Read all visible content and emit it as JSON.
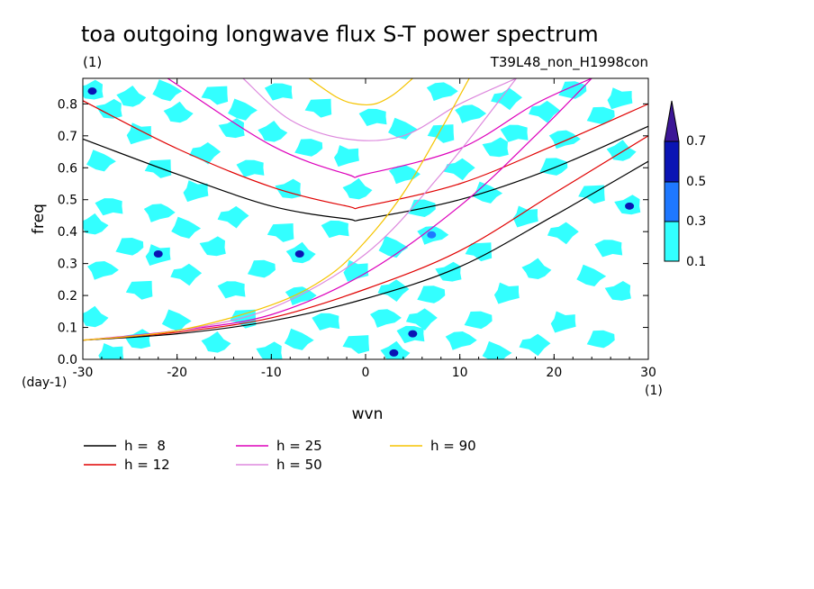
{
  "chart_data": {
    "type": "heatmap",
    "title": "toa outgoing longwave flux S-T power spectrum",
    "subtitle_left": "(1)",
    "subtitle_right": "T39L48_non_H1998con",
    "xlabel": "wvn",
    "ylabel": "freq",
    "x_unit": "(1)",
    "y_unit": "(day-1)",
    "xlim": [
      -30,
      30
    ],
    "ylim": [
      0,
      0.88
    ],
    "xticks": [
      "-30",
      "-20",
      "-10",
      "0",
      "10",
      "20",
      "30"
    ],
    "yticks": [
      "0.0",
      "0.1",
      "0.2",
      "0.3",
      "0.4",
      "0.5",
      "0.6",
      "0.7",
      "0.8"
    ],
    "colorbar": {
      "levels": [
        "0.1",
        "0.3",
        "0.5",
        "0.7"
      ],
      "colors": [
        "#33ffff",
        "#1e78ff",
        "#0a14b4",
        "#3c1696"
      ]
    },
    "contour_patches": [
      {
        "x": -29,
        "y": 0.84,
        "v": 0.5
      },
      {
        "x": -25,
        "y": 0.82,
        "v": 0.1
      },
      {
        "x": -21,
        "y": 0.84,
        "v": 0.1
      },
      {
        "x": -16,
        "y": 0.83,
        "v": 0.1
      },
      {
        "x": -9,
        "y": 0.84,
        "v": 0.1
      },
      {
        "x": 8,
        "y": 0.84,
        "v": 0.1
      },
      {
        "x": 15,
        "y": 0.82,
        "v": 0.1
      },
      {
        "x": 22,
        "y": 0.84,
        "v": 0.1
      },
      {
        "x": 27,
        "y": 0.82,
        "v": 0.1
      },
      {
        "x": -27,
        "y": 0.78,
        "v": 0.1
      },
      {
        "x": -20,
        "y": 0.77,
        "v": 0.1
      },
      {
        "x": -13,
        "y": 0.78,
        "v": 0.1
      },
      {
        "x": -5,
        "y": 0.79,
        "v": 0.1
      },
      {
        "x": 1,
        "y": 0.76,
        "v": 0.1
      },
      {
        "x": 11,
        "y": 0.77,
        "v": 0.1
      },
      {
        "x": 19,
        "y": 0.78,
        "v": 0.1
      },
      {
        "x": 25,
        "y": 0.76,
        "v": 0.1
      },
      {
        "x": -24,
        "y": 0.71,
        "v": 0.1
      },
      {
        "x": -14,
        "y": 0.72,
        "v": 0.1
      },
      {
        "x": -10,
        "y": 0.71,
        "v": 0.1
      },
      {
        "x": 4,
        "y": 0.72,
        "v": 0.1
      },
      {
        "x": 8,
        "y": 0.71,
        "v": 0.1
      },
      {
        "x": 16,
        "y": 0.71,
        "v": 0.1
      },
      {
        "x": 21,
        "y": 0.69,
        "v": 0.1
      },
      {
        "x": -17,
        "y": 0.65,
        "v": 0.1
      },
      {
        "x": -6,
        "y": 0.66,
        "v": 0.1
      },
      {
        "x": -2,
        "y": 0.64,
        "v": 0.1
      },
      {
        "x": 14,
        "y": 0.66,
        "v": 0.1
      },
      {
        "x": 27,
        "y": 0.65,
        "v": 0.1
      },
      {
        "x": -28,
        "y": 0.62,
        "v": 0.1
      },
      {
        "x": -22,
        "y": 0.6,
        "v": 0.1
      },
      {
        "x": -12,
        "y": 0.6,
        "v": 0.1
      },
      {
        "x": 4,
        "y": 0.58,
        "v": 0.1
      },
      {
        "x": 10,
        "y": 0.6,
        "v": 0.1
      },
      {
        "x": 20,
        "y": 0.6,
        "v": 0.1
      },
      {
        "x": -18,
        "y": 0.53,
        "v": 0.1
      },
      {
        "x": -8,
        "y": 0.53,
        "v": 0.1
      },
      {
        "x": -1,
        "y": 0.53,
        "v": 0.1
      },
      {
        "x": 13,
        "y": 0.52,
        "v": 0.1
      },
      {
        "x": 24,
        "y": 0.52,
        "v": 0.1
      },
      {
        "x": -27,
        "y": 0.48,
        "v": 0.1
      },
      {
        "x": -22,
        "y": 0.46,
        "v": 0.1
      },
      {
        "x": -14,
        "y": 0.45,
        "v": 0.1
      },
      {
        "x": 6,
        "y": 0.47,
        "v": 0.1
      },
      {
        "x": 17,
        "y": 0.45,
        "v": 0.1
      },
      {
        "x": 28,
        "y": 0.48,
        "v": 0.5
      },
      {
        "x": -29,
        "y": 0.42,
        "v": 0.1
      },
      {
        "x": -19,
        "y": 0.41,
        "v": 0.1
      },
      {
        "x": -9,
        "y": 0.4,
        "v": 0.1
      },
      {
        "x": -3,
        "y": 0.41,
        "v": 0.1
      },
      {
        "x": 7,
        "y": 0.39,
        "v": 0.3
      },
      {
        "x": 21,
        "y": 0.4,
        "v": 0.1
      },
      {
        "x": -25,
        "y": 0.35,
        "v": 0.1
      },
      {
        "x": -22,
        "y": 0.33,
        "v": 0.5
      },
      {
        "x": -16,
        "y": 0.35,
        "v": 0.1
      },
      {
        "x": -7,
        "y": 0.33,
        "v": 0.5
      },
      {
        "x": 3,
        "y": 0.35,
        "v": 0.1
      },
      {
        "x": 12,
        "y": 0.34,
        "v": 0.1
      },
      {
        "x": 26,
        "y": 0.35,
        "v": 0.1
      },
      {
        "x": -28,
        "y": 0.28,
        "v": 0.1
      },
      {
        "x": -19,
        "y": 0.27,
        "v": 0.1
      },
      {
        "x": -11,
        "y": 0.28,
        "v": 0.1
      },
      {
        "x": -1,
        "y": 0.28,
        "v": 0.1
      },
      {
        "x": 9,
        "y": 0.27,
        "v": 0.1
      },
      {
        "x": 18,
        "y": 0.28,
        "v": 0.1
      },
      {
        "x": 24,
        "y": 0.26,
        "v": 0.1
      },
      {
        "x": -24,
        "y": 0.22,
        "v": 0.1
      },
      {
        "x": -14,
        "y": 0.22,
        "v": 0.1
      },
      {
        "x": -7,
        "y": 0.2,
        "v": 0.1
      },
      {
        "x": 3,
        "y": 0.22,
        "v": 0.1
      },
      {
        "x": 7,
        "y": 0.2,
        "v": 0.1
      },
      {
        "x": 15,
        "y": 0.21,
        "v": 0.1
      },
      {
        "x": 27,
        "y": 0.21,
        "v": 0.1
      },
      {
        "x": -29,
        "y": 0.13,
        "v": 0.1
      },
      {
        "x": -20,
        "y": 0.12,
        "v": 0.1
      },
      {
        "x": -13,
        "y": 0.13,
        "v": 0.1
      },
      {
        "x": -4,
        "y": 0.12,
        "v": 0.1
      },
      {
        "x": 2,
        "y": 0.13,
        "v": 0.1
      },
      {
        "x": 6,
        "y": 0.13,
        "v": 0.1
      },
      {
        "x": 12,
        "y": 0.12,
        "v": 0.1
      },
      {
        "x": 21,
        "y": 0.12,
        "v": 0.1
      },
      {
        "x": -24,
        "y": 0.06,
        "v": 0.1
      },
      {
        "x": -16,
        "y": 0.05,
        "v": 0.1
      },
      {
        "x": -7,
        "y": 0.06,
        "v": 0.1
      },
      {
        "x": -1,
        "y": 0.05,
        "v": 0.1
      },
      {
        "x": 5,
        "y": 0.08,
        "v": 0.5
      },
      {
        "x": 10,
        "y": 0.06,
        "v": 0.1
      },
      {
        "x": 18,
        "y": 0.05,
        "v": 0.1
      },
      {
        "x": 25,
        "y": 0.06,
        "v": 0.1
      },
      {
        "x": -27,
        "y": 0.02,
        "v": 0.1
      },
      {
        "x": -10,
        "y": 0.02,
        "v": 0.1
      },
      {
        "x": 3,
        "y": 0.02,
        "v": 0.5
      },
      {
        "x": 14,
        "y": 0.02,
        "v": 0.1
      }
    ],
    "series": [
      {
        "name": "h =  8",
        "color": "#000000",
        "x": [
          -30,
          -20,
          -10,
          -2,
          0,
          10,
          20,
          30
        ],
        "y": [
          0.69,
          0.58,
          0.48,
          0.44,
          0.44,
          0.5,
          0.6,
          0.73
        ]
      },
      {
        "name": "h =  8",
        "color": "#000000",
        "x": [
          -30,
          -20,
          -10,
          0,
          10,
          20,
          30
        ],
        "y": [
          0.06,
          0.08,
          0.12,
          0.19,
          0.29,
          0.45,
          0.62
        ]
      },
      {
        "name": "h = 12",
        "color": "#e00000",
        "x": [
          -30,
          -20,
          -10,
          -2,
          0,
          10,
          20,
          30
        ],
        "y": [
          0.81,
          0.66,
          0.54,
          0.48,
          0.48,
          0.55,
          0.67,
          0.8
        ]
      },
      {
        "name": "h = 12",
        "color": "#e00000",
        "x": [
          -30,
          -20,
          -10,
          0,
          10,
          20,
          30
        ],
        "y": [
          0.06,
          0.085,
          0.13,
          0.22,
          0.34,
          0.52,
          0.7
        ]
      },
      {
        "name": "h = 25",
        "color": "#dd00bb",
        "x": [
          -21,
          -10,
          -2,
          0,
          10,
          18,
          24
        ],
        "y": [
          0.88,
          0.67,
          0.58,
          0.58,
          0.66,
          0.8,
          0.88
        ]
      },
      {
        "name": "h = 25",
        "color": "#dd00bb",
        "x": [
          -30,
          -20,
          -10,
          0,
          10,
          18,
          24
        ],
        "y": [
          0.06,
          0.09,
          0.14,
          0.27,
          0.48,
          0.7,
          0.88
        ]
      },
      {
        "name": "h = 50",
        "color": "#dd88dd",
        "x": [
          -13,
          -8,
          -2,
          4,
          10,
          16
        ],
        "y": [
          0.88,
          0.75,
          0.69,
          0.7,
          0.8,
          0.88
        ]
      },
      {
        "name": "h = 50",
        "color": "#dd88dd",
        "x": [
          -30,
          -20,
          -10,
          0,
          8,
          16
        ],
        "y": [
          0.06,
          0.09,
          0.16,
          0.33,
          0.58,
          0.88
        ]
      },
      {
        "name": "h = 90",
        "color": "#f5c400",
        "x": [
          -6,
          -3,
          -1,
          1,
          3,
          5
        ],
        "y": [
          0.88,
          0.82,
          0.8,
          0.8,
          0.83,
          0.88
        ]
      },
      {
        "name": "h = 90",
        "color": "#f5c400",
        "x": [
          -30,
          -20,
          -10,
          -4,
          0,
          4,
          8,
          11
        ],
        "y": [
          0.06,
          0.09,
          0.17,
          0.26,
          0.37,
          0.52,
          0.72,
          0.88
        ]
      }
    ],
    "legend": [
      {
        "label": "h =  8",
        "color": "#000000"
      },
      {
        "label": "h = 12",
        "color": "#e00000"
      },
      {
        "label": "h = 25",
        "color": "#dd00bb"
      },
      {
        "label": "h = 50",
        "color": "#dd88dd"
      },
      {
        "label": "h = 90",
        "color": "#f5c400"
      }
    ]
  }
}
